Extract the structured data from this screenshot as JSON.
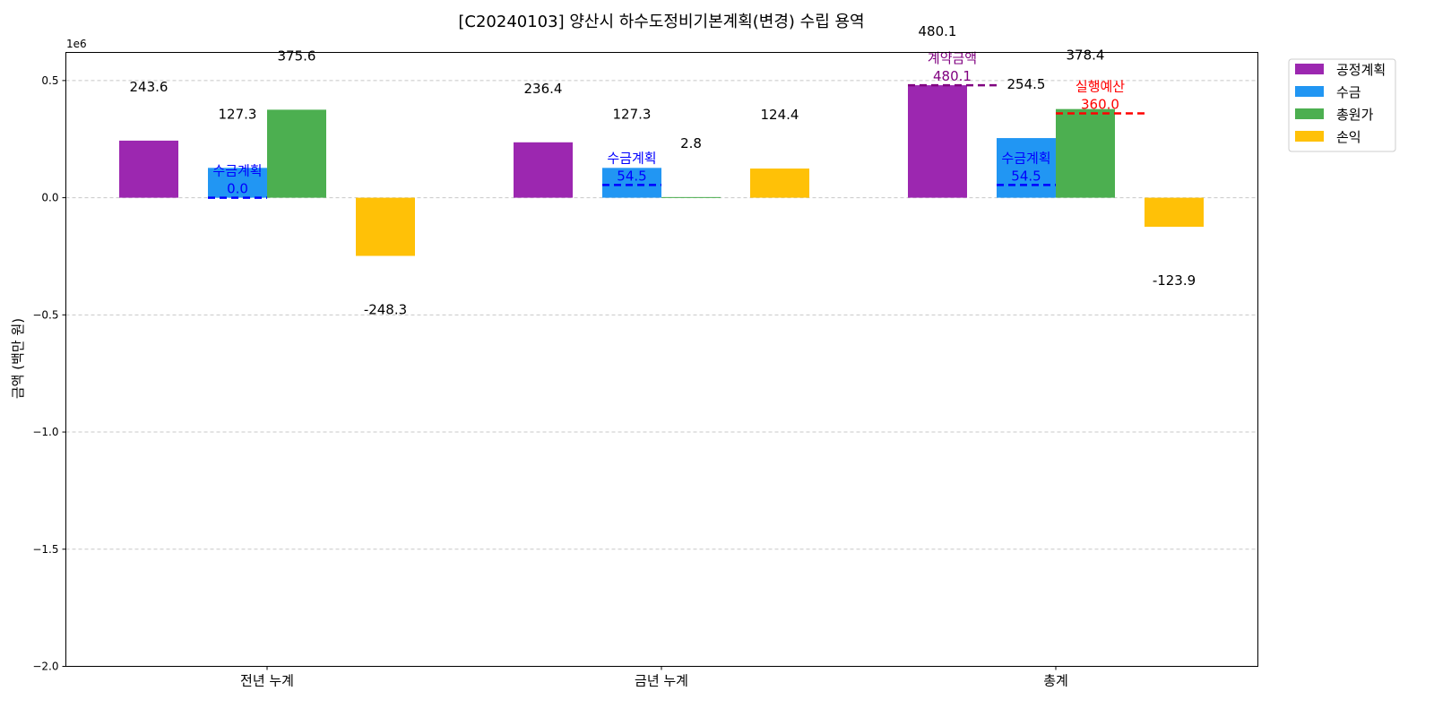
{
  "chart_data": {
    "type": "bar",
    "title": "[C20240103] 양산시 하수도정비기본계획(변경) 수립 용역",
    "ylabel": "금액 (백만 원)",
    "xlabel": "",
    "offset_text": "1e6",
    "ylim": [
      -2000000,
      620000
    ],
    "yticks": [
      0.5,
      0.0,
      -0.5,
      -1.0,
      -1.5,
      -2.0
    ],
    "ytick_labels": [
      "0.5",
      "0.0",
      "−0.5",
      "−1.0",
      "−1.5",
      "−2.0"
    ],
    "grid": true,
    "legend_position": "top-right, outside plot",
    "categories": [
      "전년 누계",
      "금년 누계",
      "총계"
    ],
    "series": [
      {
        "name": "공정계획",
        "color": "#9C27B0",
        "values": [
          243.6,
          236.4,
          480.1
        ],
        "labels": [
          "243.6",
          "236.4",
          "480.1"
        ]
      },
      {
        "name": "수금",
        "color": "#2196F3",
        "values": [
          127.3,
          127.3,
          254.5
        ],
        "labels": [
          "127.3",
          "127.3",
          "254.5"
        ]
      },
      {
        "name": "총원가",
        "color": "#4CAF50",
        "values": [
          375.6,
          2.8,
          378.4
        ],
        "labels": [
          "375.6",
          "2.8",
          "378.4"
        ]
      },
      {
        "name": "손익",
        "color": "#FFC107",
        "values": [
          -248.3,
          124.4,
          -123.9
        ],
        "labels": [
          "-248.3",
          "124.4",
          "-123.9"
        ]
      }
    ],
    "reference_lines": [
      {
        "category": 0,
        "series_from": 1,
        "series_to": 2,
        "value": 0.0,
        "label": "수금계획",
        "value_label": "0.0",
        "color": "#0000FF"
      },
      {
        "category": 1,
        "series_from": 1,
        "series_to": 2,
        "value": 54.5,
        "label": "수금계획",
        "value_label": "54.5",
        "color": "#0000FF"
      },
      {
        "category": 2,
        "series_from": 0,
        "series_to": 1,
        "value": 480.1,
        "label": "계약금액",
        "value_label": "480.1",
        "color": "#800080"
      },
      {
        "category": 2,
        "series_from": 1,
        "series_to": 2,
        "value": 54.5,
        "label": "수금계획",
        "value_label": "54.5",
        "color": "#0000FF"
      },
      {
        "category": 2,
        "series_from": 2,
        "series_to": 3,
        "value": 360.0,
        "label": "실행예산",
        "value_label": "360.0",
        "color": "#FF0000"
      }
    ]
  }
}
